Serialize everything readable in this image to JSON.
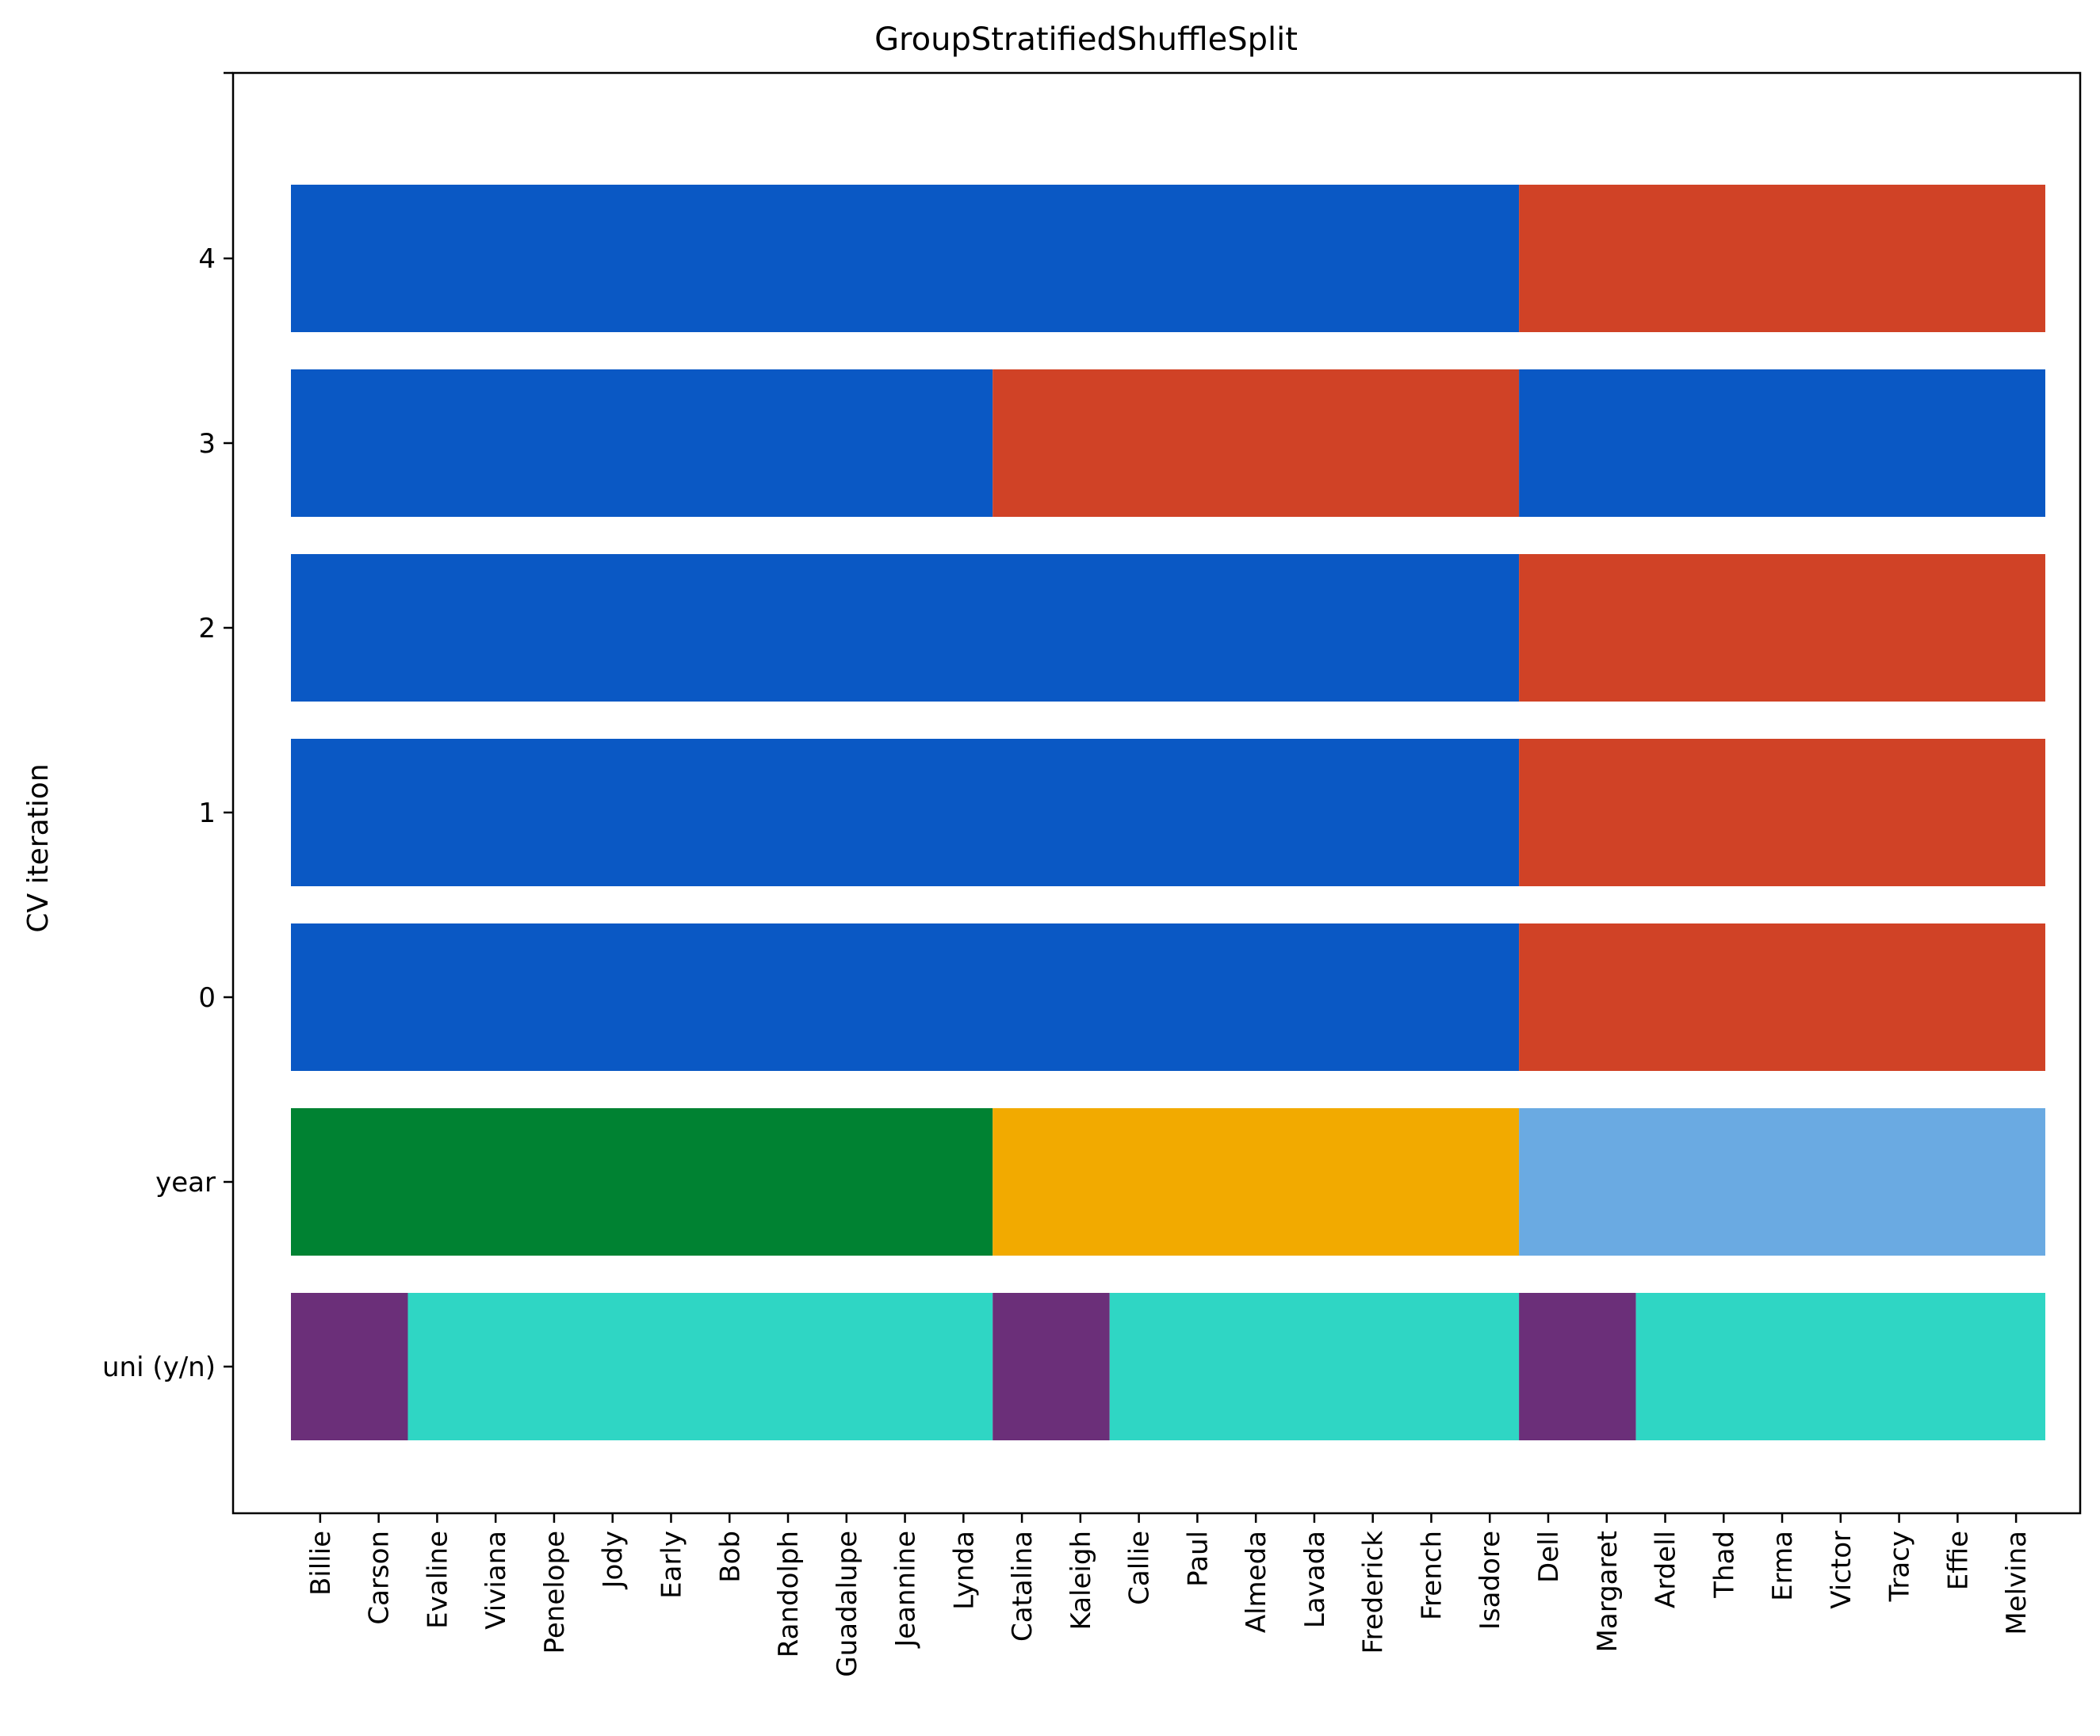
{
  "chart_data": {
    "type": "heatmap",
    "title": "GroupStratifiedShuffleSplit",
    "ylabel": "CV iteration",
    "xlabel": "",
    "x_tick_labels": [
      "Billie",
      "Carson",
      "Evaline",
      "Viviana",
      "Penelope",
      "Jody",
      "Early",
      "Bob",
      "Randolph",
      "Guadalupe",
      "Jeannine",
      "Lynda",
      "Catalina",
      "Kaleigh",
      "Callie",
      "Paul",
      "Almeda",
      "Lavada",
      "Frederick",
      "French",
      "Isadore",
      "Dell",
      "Margaret",
      "Ardell",
      "Thad",
      "Erma",
      "Victor",
      "Tracy",
      "Effie",
      "Melvina"
    ],
    "y_tick_labels": [
      "4",
      "3",
      "2",
      "1",
      "0",
      "year",
      "uni (y/n)"
    ],
    "split_colors": {
      "train": "#0a58c4",
      "test": "#d04226"
    },
    "year_colors": {
      "1": "#008232",
      "2": "#f2aa00",
      "3": "#6aaae2"
    },
    "uni_colors": {
      "y": "#6b2f79",
      "n": "#2fd6c4"
    },
    "cv_rows": [
      {
        "label": "4",
        "segments": [
          {
            "from": 0,
            "to": 21,
            "class": "train"
          },
          {
            "from": 21,
            "to": 30,
            "class": "test"
          }
        ]
      },
      {
        "label": "3",
        "segments": [
          {
            "from": 0,
            "to": 12,
            "class": "train"
          },
          {
            "from": 12,
            "to": 21,
            "class": "test"
          },
          {
            "from": 21,
            "to": 30,
            "class": "train"
          }
        ]
      },
      {
        "label": "2",
        "segments": [
          {
            "from": 0,
            "to": 21,
            "class": "train"
          },
          {
            "from": 21,
            "to": 30,
            "class": "test"
          }
        ]
      },
      {
        "label": "1",
        "segments": [
          {
            "from": 0,
            "to": 21,
            "class": "train"
          },
          {
            "from": 21,
            "to": 30,
            "class": "test"
          }
        ]
      },
      {
        "label": "0",
        "segments": [
          {
            "from": 0,
            "to": 21,
            "class": "train"
          },
          {
            "from": 21,
            "to": 30,
            "class": "test"
          }
        ]
      }
    ],
    "year_row": {
      "label": "year",
      "segments": [
        {
          "from": 0,
          "to": 12,
          "value": "1"
        },
        {
          "from": 12,
          "to": 21,
          "value": "2"
        },
        {
          "from": 21,
          "to": 30,
          "value": "3"
        }
      ]
    },
    "uni_row": {
      "label": "uni (y/n)",
      "segments": [
        {
          "from": 0,
          "to": 2,
          "value": "y"
        },
        {
          "from": 2,
          "to": 12,
          "value": "n"
        },
        {
          "from": 12,
          "to": 14,
          "value": "y"
        },
        {
          "from": 14,
          "to": 21,
          "value": "n"
        },
        {
          "from": 21,
          "to": 23,
          "value": "y"
        },
        {
          "from": 23,
          "to": 30,
          "value": "n"
        }
      ]
    },
    "grid": false
  }
}
